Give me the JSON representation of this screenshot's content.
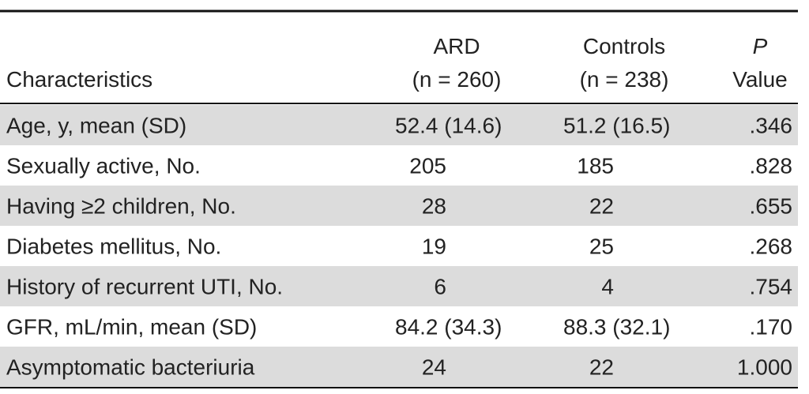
{
  "table": {
    "header": [
      [
        "Characteristics"
      ],
      [
        "ARD",
        "(n = 260)"
      ],
      [
        "Controls",
        "(n = 238)"
      ],
      [
        "P",
        "Value"
      ]
    ],
    "rows": [
      [
        "Age, y, mean (SD)",
        "52.4 (14.6)",
        "51.2 (16.5)",
        ".346"
      ],
      [
        "Sexually active, No.",
        "205",
        "185",
        ".828"
      ],
      [
        "Having ≥2 children, No.",
        "28",
        "22",
        ".655"
      ],
      [
        "Diabetes mellitus, No.",
        "19",
        "25",
        ".268"
      ],
      [
        "History of recurrent UTI, No.",
        "6",
        "4",
        ".754"
      ],
      [
        "GFR, mL/min, mean (SD)",
        "84.2 (34.3)",
        "88.3 (32.1)",
        ".170"
      ],
      [
        "Asymptomatic bacteriuria",
        "24",
        "22",
        "1.000"
      ]
    ]
  }
}
